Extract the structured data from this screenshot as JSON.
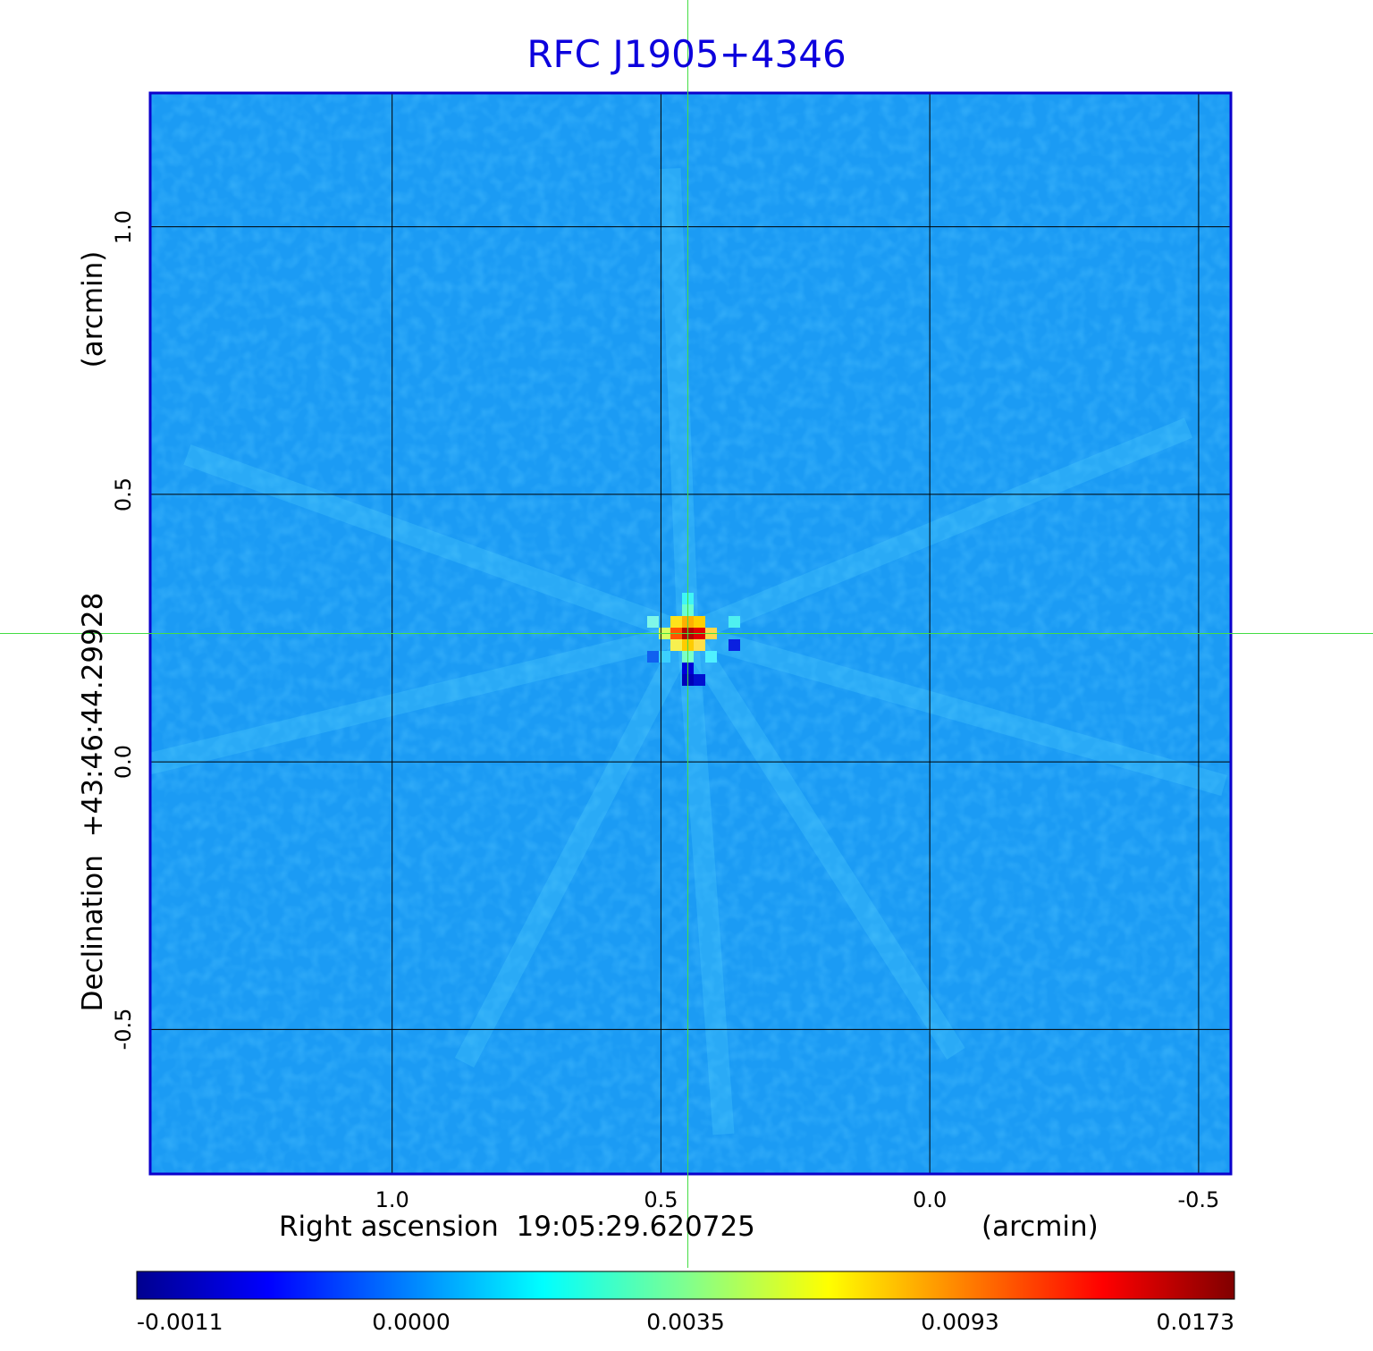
{
  "chart_data": {
    "type": "heatmap",
    "title": "RFC J1905+4346",
    "xlabel": {
      "main": "Right ascension  19:05:29.620725",
      "unit": "(arcmin)"
    },
    "ylabel": {
      "main": "Declination  +43:46:44.29928",
      "unit": "(arcmin)"
    },
    "x_ticks": [
      "1.0",
      "0.5",
      "0.0",
      "-0.5"
    ],
    "x_tick_values": [
      1.0,
      0.5,
      0.0,
      -0.5
    ],
    "y_ticks": [
      "1.0",
      "0.5",
      "0.0",
      "-0.5"
    ],
    "y_tick_values": [
      1.0,
      0.5,
      0.0,
      -0.5
    ],
    "xlim": [
      1.45,
      -0.56
    ],
    "ylim": [
      -0.77,
      1.25
    ],
    "grid": true,
    "crosshair": {
      "x": 0.45,
      "y": 0.24
    },
    "source_peak": {
      "ra_offset": 0.45,
      "dec_offset": 0.24,
      "value": 0.0173
    },
    "colorbar": {
      "ticks": [
        "-0.0011",
        "0.0000",
        "0.0035",
        "0.0093",
        "0.0173"
      ],
      "values": [
        -0.0011,
        0.0,
        0.0035,
        0.0093,
        0.0173
      ],
      "colormap": "jet",
      "colors": [
        "#00008f",
        "#0000ff",
        "#00ffff",
        "#ffff00",
        "#ff0000",
        "#800000"
      ]
    },
    "colors": {
      "title": "#0c00dd",
      "frame": "#0c00cc",
      "crosshair": "#44dd44",
      "grid": "#000000"
    }
  }
}
